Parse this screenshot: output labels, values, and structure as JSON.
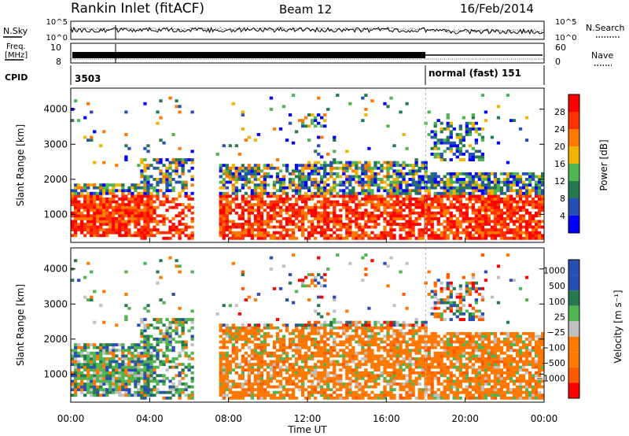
{
  "header": {
    "station": "Rankin Inlet (fitACF)",
    "beam": "Beam 12",
    "date": "16/Feb/2014"
  },
  "top_panels": {
    "nsky_label": "N.Sky",
    "nsearch_label": "N.Search",
    "noise_ticks": [
      "10^5",
      "10^0"
    ],
    "freq_label_1": "Freq.",
    "freq_label_2": "[MHz]",
    "freq_ticks": [
      "8",
      "10"
    ],
    "nave_label": "Nave",
    "nave_ticks": [
      "60",
      "0"
    ],
    "cpid_label": "CPID",
    "cpid_values": [
      {
        "start_hour": 0,
        "label": "3503"
      },
      {
        "start_hour": 18,
        "label": "normal (fast) 151"
      }
    ]
  },
  "x_axis": {
    "label": "Time UT",
    "ticks": [
      "00:00",
      "04:00",
      "08:00",
      "12:00",
      "16:00",
      "20:00",
      "00:00"
    ],
    "tick_hours": [
      0,
      4,
      8,
      12,
      16,
      20,
      24
    ],
    "range_hours": [
      0,
      24
    ]
  },
  "colors": {
    "power": [
      "#0000ff",
      "#2850b4",
      "#287850",
      "#50b450",
      "#f0b400",
      "#ff7800",
      "#ff3200",
      "#ff0000"
    ],
    "velocity_pos": [
      "#2850b4",
      "#287850",
      "#50b450"
    ],
    "velocity_gray": "#c0c0c0",
    "velocity_neg": [
      "#ff7800",
      "#ff5a00",
      "#ff0000"
    ]
  },
  "chart_data": [
    {
      "type": "heatmap",
      "name": "power",
      "ylabel": "Slant Range [km]",
      "yticks": [
        1000,
        2000,
        3000,
        4000
      ],
      "ylim": [
        200,
        4600
      ],
      "xlim": [
        0,
        24
      ],
      "colorbar_label": "Power [dB]",
      "colorbar_ticks": [
        "28",
        "24",
        "20",
        "16",
        "12",
        "8",
        "4"
      ],
      "colorbar_values": [
        28,
        24,
        20,
        16,
        12,
        8,
        4
      ],
      "colorbar_range": [
        0,
        32
      ]
    },
    {
      "type": "heatmap",
      "name": "velocity",
      "ylabel": "Slant Range [km]",
      "yticks": [
        1000,
        2000,
        3000,
        4000
      ],
      "ylim": [
        200,
        4600
      ],
      "xlim": [
        0,
        24
      ],
      "colorbar_label": "Velocity [m s⁻¹]",
      "colorbar_ticks": [
        "1000",
        "500",
        "100",
        "25",
        "−25",
        "−100",
        "−500",
        "−1000"
      ],
      "colorbar_values": [
        1000,
        500,
        100,
        25,
        -25,
        -100,
        -500,
        -1000
      ]
    }
  ]
}
